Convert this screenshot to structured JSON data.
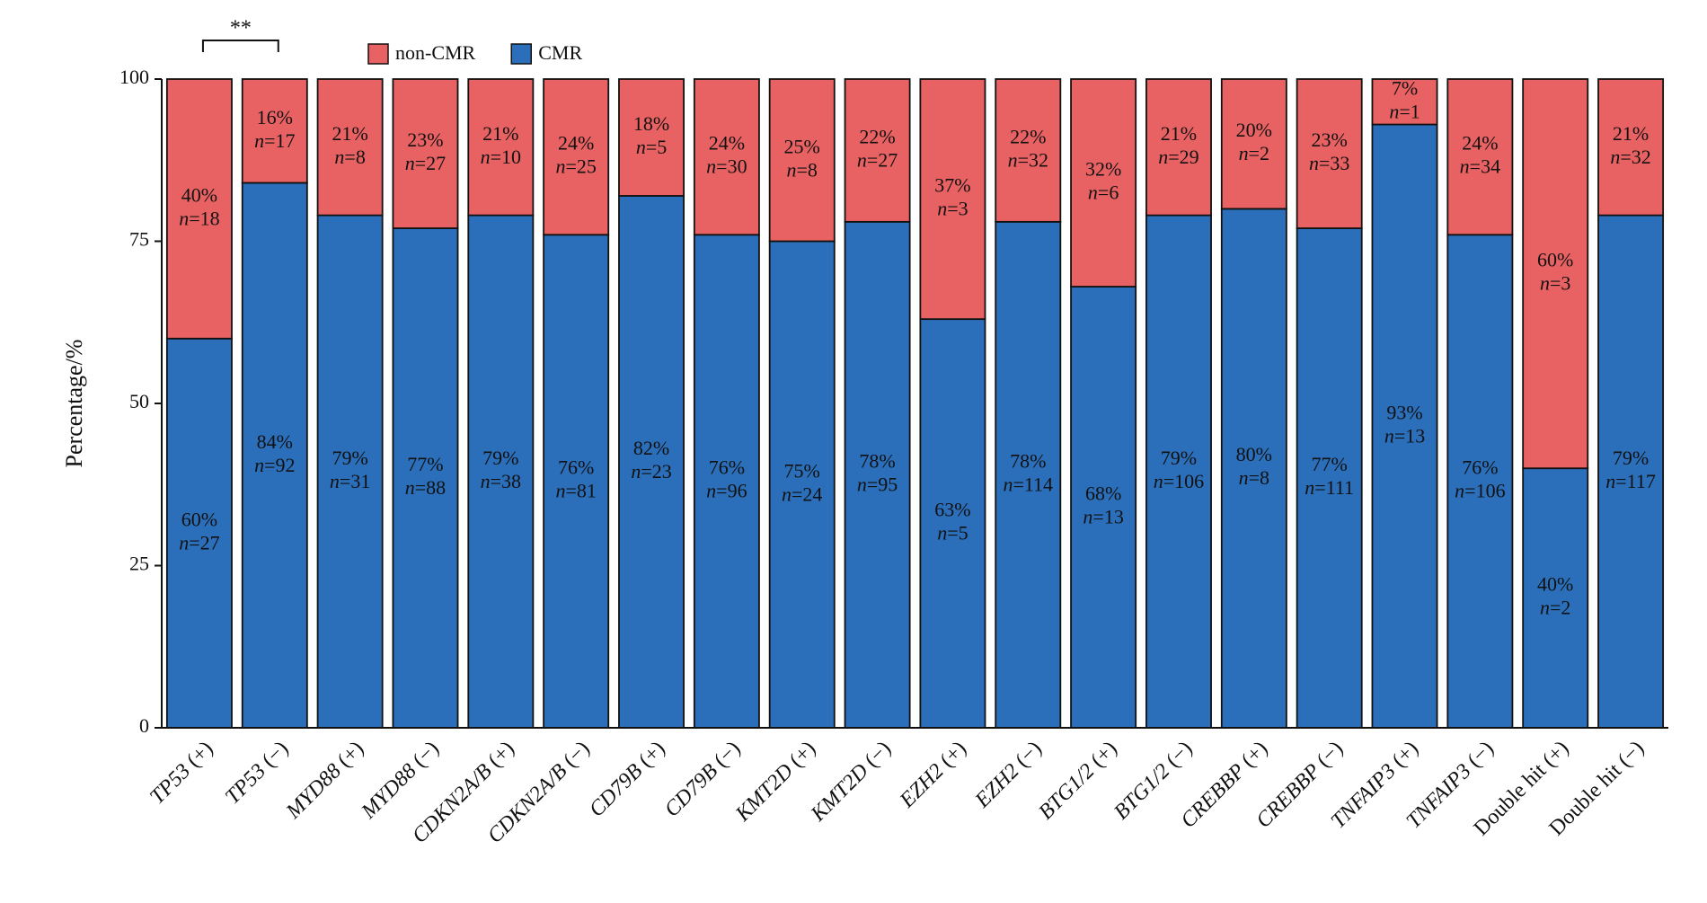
{
  "chart_data": {
    "type": "stacked_bar",
    "y_label": "Percentage/%",
    "categories": [
      "TP53 (+)",
      "TP53 (−)",
      "MYD88 (+)",
      "MYD88 (−)",
      "CDKN2A/B (+)",
      "CDKN2A/B (−)",
      "CD79B (+)",
      "CD79B (−)",
      "KMT2D (+)",
      "KMT2D (−)",
      "EZH2 (+)",
      "EZH2 (−)",
      "BTG1/2 (+)",
      "BTG1/2 (−)",
      "CREBBP (+)",
      "CREBBP (−)",
      "TNFAIP3 (+)",
      "TNFAIP3 (−)",
      "Double hit (+)",
      "Double hit (−)"
    ],
    "category_italic": [
      true,
      true,
      true,
      true,
      true,
      true,
      true,
      true,
      true,
      true,
      true,
      true,
      true,
      true,
      true,
      true,
      true,
      true,
      false,
      false
    ],
    "series": [
      {
        "name": "CMR",
        "color": "#2b6fba",
        "values": [
          60,
          84,
          79,
          77,
          79,
          76,
          82,
          76,
          75,
          78,
          63,
          78,
          68,
          79,
          80,
          77,
          93,
          76,
          40,
          79
        ],
        "value_labels": [
          "60%",
          "84%",
          "79%",
          "77%",
          "79%",
          "76%",
          "82%",
          "76%",
          "75%",
          "78%",
          "63%",
          "78%",
          "68%",
          "79%",
          "80%",
          "77%",
          "93%",
          "76%",
          "40%",
          "79%"
        ],
        "n_labels": [
          "n=27",
          "n=92",
          "n=31",
          "n=88",
          "n=38",
          "n=81",
          "n=23",
          "n=96",
          "n=24",
          "n=95",
          "n=5",
          "n=114",
          "n=13",
          "n=106",
          "n=8",
          "n=111",
          "n=13",
          "n=106",
          "n=2",
          "n=117"
        ]
      },
      {
        "name": "non-CMR",
        "color": "#e96263",
        "values": [
          40,
          16,
          21,
          23,
          21,
          24,
          18,
          24,
          25,
          22,
          37,
          22,
          32,
          21,
          20,
          23,
          7,
          24,
          60,
          21
        ],
        "value_labels": [
          "40%",
          "16%",
          "21%",
          "23%",
          "21%",
          "24%",
          "18%",
          "24%",
          "25%",
          "22%",
          "37%",
          "22%",
          "32%",
          "21%",
          "20%",
          "23%",
          "7%",
          "24%",
          "60%",
          "21%"
        ],
        "n_labels": [
          "n=18",
          "n=17",
          "n=8",
          "n=27",
          "n=10",
          "n=25",
          "n=5",
          "n=30",
          "n=8",
          "n=27",
          "n=3",
          "n=32",
          "n=6",
          "n=29",
          "n=2",
          "n=33",
          "n=1",
          "n=34",
          "n=3",
          "n=32"
        ]
      }
    ],
    "legend_order": [
      1,
      0
    ],
    "annotations": [
      {
        "text": "**",
        "from": 0,
        "to": 1
      }
    ],
    "ylim": [
      0,
      100
    ],
    "yticks": [
      0,
      25,
      50,
      75,
      100
    ],
    "grid": false
  }
}
